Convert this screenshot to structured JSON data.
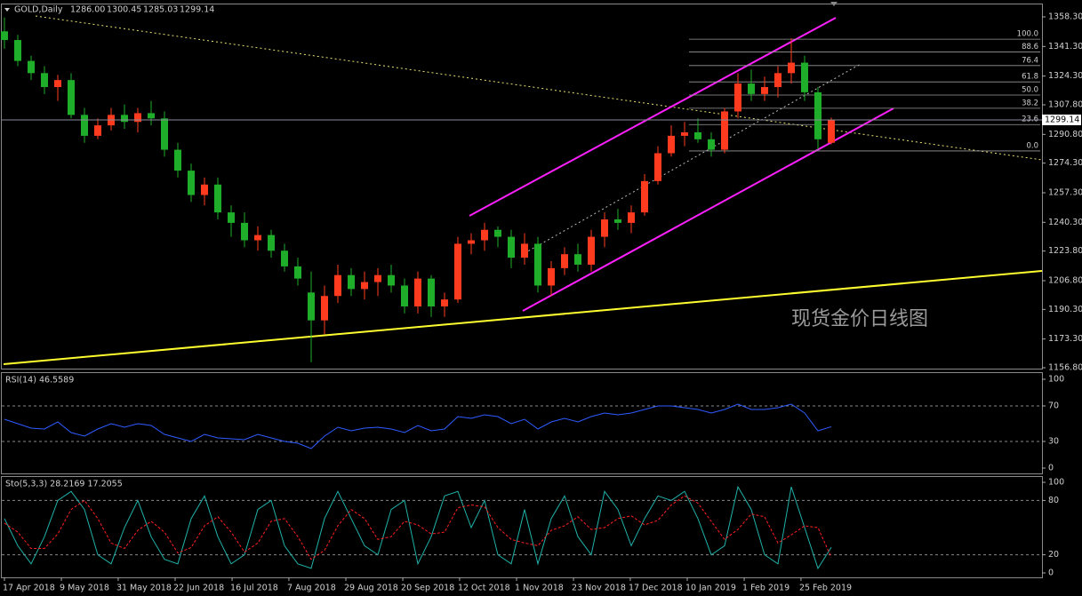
{
  "chart_data": [
    {
      "type": "candlestick",
      "title": "GOLD,Daily",
      "quote": [
        "1286.00",
        "1300.45",
        "1285.03",
        "1299.14"
      ],
      "watermark": "现货金价日线图",
      "up_color": "#ff3b1f",
      "down_color": "#1fae2a",
      "xlim": [
        0,
        62
      ],
      "ylim": [
        1156.29,
        1365.44
      ],
      "yticks": [
        {
          "value": 1358.3,
          "label": "1358.30"
        },
        {
          "value": 1341.3,
          "label": "1341.30"
        },
        {
          "value": 1324.3,
          "label": "1324.30"
        },
        {
          "value": 1307.8,
          "label": "1307.80"
        },
        {
          "value": 1290.8,
          "label": "1290.80"
        },
        {
          "value": 1274.3,
          "label": "1274.30"
        },
        {
          "value": 1257.3,
          "label": "1257.30"
        },
        {
          "value": 1240.3,
          "label": "1240.30"
        },
        {
          "value": 1223.8,
          "label": "1223.80"
        },
        {
          "value": 1206.8,
          "label": "1206.80"
        },
        {
          "value": 1190.3,
          "label": "1190.30"
        },
        {
          "value": 1173.3,
          "label": "1173.30"
        },
        {
          "value": 1156.8,
          "label": "1156.80"
        }
      ],
      "last_price": {
        "value": 1299.14,
        "label": "1299.14"
      },
      "fib": {
        "high": 1345.5,
        "low": 1281.3,
        "levels": [
          {
            "value": 100,
            "label": "100.0"
          },
          {
            "value": 88.6,
            "label": "88.6"
          },
          {
            "value": 76.4,
            "label": "76.4"
          },
          {
            "value": 61.8,
            "label": "61.8"
          },
          {
            "value": 50,
            "label": "50.0"
          },
          {
            "value": 38.2,
            "label": "38.2"
          },
          {
            "value": 23.6,
            "label": "23.6"
          },
          {
            "value": 0,
            "label": "0.0"
          }
        ]
      },
      "open": [
        1350,
        1345,
        1333,
        1326,
        1318,
        1322,
        1302,
        1290,
        1296,
        1302,
        1298,
        1303,
        1300,
        1282,
        1270,
        1256,
        1262,
        1246,
        1240,
        1230,
        1233,
        1224,
        1215,
        1200,
        1184,
        1198,
        1210,
        1202,
        1206,
        1210,
        1204,
        1192,
        1208,
        1192,
        1196,
        1228,
        1230,
        1236,
        1232,
        1220,
        1228,
        1204,
        1214,
        1222,
        1216,
        1232,
        1242,
        1240,
        1246,
        1264,
        1280,
        1290,
        1292,
        1288,
        1282,
        1304,
        1320,
        1314,
        1318,
        1326,
        1332,
        1315,
        1286
      ],
      "high": [
        1358,
        1348,
        1336,
        1330,
        1325,
        1326,
        1306,
        1300,
        1306,
        1308,
        1306,
        1310,
        1304,
        1286,
        1274,
        1266,
        1266,
        1250,
        1246,
        1238,
        1236,
        1228,
        1220,
        1212,
        1204,
        1216,
        1214,
        1212,
        1214,
        1216,
        1208,
        1212,
        1210,
        1200,
        1232,
        1234,
        1240,
        1238,
        1236,
        1234,
        1232,
        1218,
        1226,
        1228,
        1236,
        1246,
        1248,
        1250,
        1268,
        1284,
        1296,
        1298,
        1300,
        1292,
        1306,
        1326,
        1328,
        1324,
        1330,
        1346,
        1336,
        1318,
        1300.45
      ],
      "low": [
        1340,
        1330,
        1322,
        1314,
        1310,
        1300,
        1286,
        1288,
        1293,
        1294,
        1292,
        1296,
        1278,
        1266,
        1252,
        1250,
        1242,
        1232,
        1226,
        1224,
        1220,
        1212,
        1204,
        1160,
        1176,
        1194,
        1198,
        1196,
        1198,
        1200,
        1188,
        1188,
        1186,
        1186,
        1194,
        1222,
        1224,
        1226,
        1214,
        1216,
        1200,
        1198,
        1210,
        1212,
        1212,
        1226,
        1236,
        1234,
        1244,
        1262,
        1278,
        1284,
        1286,
        1278,
        1280,
        1300,
        1310,
        1310,
        1312,
        1320,
        1310,
        1282,
        1285.03
      ],
      "close": [
        1345,
        1333,
        1326,
        1318,
        1322,
        1302,
        1290,
        1296,
        1302,
        1298,
        1303,
        1300,
        1282,
        1270,
        1256,
        1262,
        1246,
        1240,
        1230,
        1233,
        1224,
        1215,
        1208,
        1184,
        1198,
        1210,
        1202,
        1206,
        1210,
        1204,
        1192,
        1208,
        1192,
        1196,
        1228,
        1230,
        1236,
        1232,
        1220,
        1228,
        1204,
        1214,
        1222,
        1216,
        1232,
        1242,
        1240,
        1246,
        1264,
        1280,
        1290,
        1292,
        1288,
        1282,
        1304,
        1320,
        1314,
        1318,
        1326,
        1332,
        1315,
        1288,
        1299.14
      ]
    },
    {
      "type": "line",
      "title": "RSI(14) 46.5589",
      "xlim": [
        0,
        62
      ],
      "ylim": [
        -6,
        107
      ],
      "yticks": [
        100,
        70,
        30,
        0
      ],
      "levels": [
        70,
        30
      ],
      "series": [
        {
          "color": "#2f5bff",
          "values": [
            55,
            50,
            45,
            44,
            52,
            40,
            36,
            44,
            50,
            46,
            50,
            48,
            38,
            34,
            30,
            38,
            34,
            33,
            32,
            38,
            34,
            30,
            28,
            22,
            36,
            46,
            42,
            45,
            46,
            44,
            40,
            48,
            42,
            44,
            58,
            56,
            60,
            58,
            50,
            55,
            44,
            52,
            56,
            52,
            58,
            62,
            60,
            62,
            66,
            70,
            70,
            68,
            66,
            62,
            66,
            72,
            66,
            66,
            68,
            72,
            62,
            42,
            46.5589
          ]
        }
      ]
    },
    {
      "type": "line",
      "title": "Sto(5,3,3) 28.2169 17.2055",
      "xlim": [
        0,
        62
      ],
      "ylim": [
        -4.9,
        105.9
      ],
      "yticks": [
        100,
        80,
        20,
        0
      ],
      "levels": [
        80,
        20
      ],
      "xticks": [
        {
          "value": 0,
          "label": "17 Apr 2018"
        },
        {
          "value": 4.27,
          "label": "9 May 2018"
        },
        {
          "value": 8.53,
          "label": "31 May 2018"
        },
        {
          "value": 12.8,
          "label": "22 Jun 2018"
        },
        {
          "value": 17.07,
          "label": "16 Jul 2018"
        },
        {
          "value": 21.33,
          "label": "7 Aug 2018"
        },
        {
          "value": 25.6,
          "label": "29 Aug 2018"
        },
        {
          "value": 29.87,
          "label": "20 Sep 2018"
        },
        {
          "value": 34.13,
          "label": "12 Oct 2018"
        },
        {
          "value": 38.4,
          "label": "1 Nov 2018"
        },
        {
          "value": 42.67,
          "label": "23 Nov 2018"
        },
        {
          "value": 46.93,
          "label": "17 Dec 2018"
        },
        {
          "value": 51.2,
          "label": "10 Jan 2019"
        },
        {
          "value": 55.47,
          "label": "1 Feb 2019"
        },
        {
          "value": 59.73,
          "label": "25 Feb 2019"
        }
      ],
      "series": [
        {
          "color": "#20b2aa",
          "values": [
            60,
            30,
            10,
            40,
            80,
            90,
            70,
            20,
            10,
            50,
            80,
            40,
            15,
            10,
            60,
            85,
            40,
            10,
            20,
            70,
            80,
            30,
            10,
            5,
            60,
            90,
            60,
            30,
            20,
            70,
            80,
            10,
            40,
            85,
            90,
            50,
            80,
            20,
            10,
            70,
            10,
            60,
            85,
            40,
            20,
            90,
            70,
            30,
            60,
            85,
            80,
            90,
            60,
            20,
            30,
            95,
            70,
            20,
            10,
            95,
            50,
            5,
            28.2169
          ]
        },
        {
          "color": "#ff2020",
          "style": "dashed",
          "values": [
            55,
            45,
            27,
            27,
            43,
            70,
            80,
            60,
            33,
            27,
            47,
            57,
            45,
            22,
            28,
            52,
            62,
            45,
            23,
            33,
            57,
            60,
            40,
            15,
            25,
            52,
            70,
            60,
            37,
            40,
            57,
            53,
            43,
            45,
            72,
            75,
            73,
            50,
            37,
            33,
            30,
            47,
            52,
            62,
            48,
            50,
            60,
            63,
            53,
            58,
            75,
            85,
            77,
            57,
            37,
            48,
            65,
            62,
            33,
            42,
            52,
            50,
            17.2055
          ]
        }
      ]
    }
  ]
}
